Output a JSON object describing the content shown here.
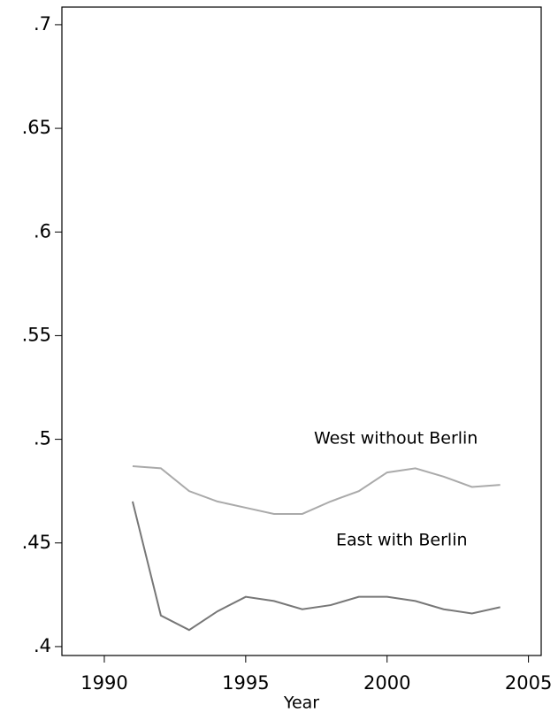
{
  "chart_data": {
    "type": "line",
    "xlabel": "Year",
    "x": [
      1991,
      1992,
      1993,
      1994,
      1995,
      1996,
      1997,
      1998,
      1999,
      2000,
      2001,
      2002,
      2003,
      2004
    ],
    "series": [
      {
        "name": "West without Berlin",
        "color": "#aaaaaa",
        "values": [
          0.487,
          0.486,
          0.475,
          0.47,
          0.467,
          0.464,
          0.464,
          0.47,
          0.475,
          0.484,
          0.486,
          0.482,
          0.477,
          0.478
        ]
      },
      {
        "name": "East with Berlin",
        "color": "#777777",
        "values": [
          0.47,
          0.415,
          0.408,
          0.417,
          0.424,
          0.422,
          0.418,
          0.42,
          0.424,
          0.424,
          0.422,
          0.418,
          0.416,
          0.419
        ]
      }
    ],
    "xlim": [
      1988.5,
      2005.45
    ],
    "xticks": [
      1990,
      1995,
      2000,
      2005
    ],
    "ylim": [
      0.3957,
      0.7085
    ],
    "yticks": [
      {
        "value": 0.4,
        "label": ".4"
      },
      {
        "value": 0.45,
        "label": ".45"
      },
      {
        "value": 0.5,
        "label": ".5"
      },
      {
        "value": 0.55,
        "label": ".55"
      },
      {
        "value": 0.6,
        "label": ".6"
      },
      {
        "value": 0.65,
        "label": ".65"
      },
      {
        "value": 0.7,
        "label": ".7"
      }
    ]
  }
}
